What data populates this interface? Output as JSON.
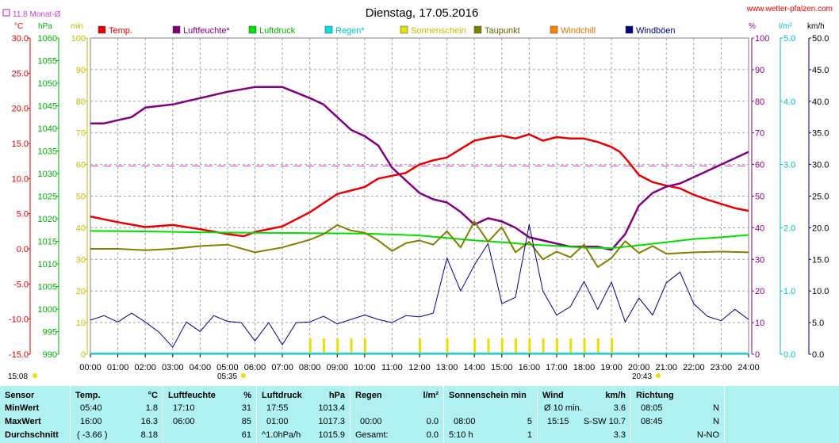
{
  "header": {
    "title": "Dienstag, 17.05.2016",
    "site": "www.wetter-pfalzen.com",
    "monthly_avg": "11.8 Monat-Ø",
    "sunrise": "05:35",
    "sunset": "20:43",
    "corner_time": "15:08"
  },
  "colors": {
    "temp": "#e80000",
    "humidity": "#800080",
    "pressure": "#00e000",
    "rain": "#00e0e0",
    "sunshine": "#e8e000",
    "dewpoint": "#808000",
    "windchill": "#ff8000",
    "gusts": "#000080",
    "monthly_avg": "#d040d0",
    "stats_bg": "#aff0f0"
  },
  "chart_data": {
    "type": "line",
    "title": "Dienstag, 17.05.2016",
    "legend": [
      "Temp.",
      "Luftfeuchte*",
      "Luftdruck",
      "Regen*",
      "Sonnenschein",
      "Taupunkt",
      "Windchill",
      "Windböen"
    ],
    "x_ticks": [
      "00:00",
      "01:00",
      "02:00",
      "03:00",
      "04:00",
      "05:00",
      "06:00",
      "07:00",
      "08:00",
      "09:00",
      "10:00",
      "11:00",
      "12:00",
      "13:00",
      "14:00",
      "15:00",
      "16:00",
      "17:00",
      "18:00",
      "19:00",
      "20:00",
      "21:00",
      "22:00",
      "23:00",
      "24:00"
    ],
    "axes": {
      "temp_c": {
        "unit": "°C",
        "range": [
          -15,
          30
        ],
        "ticks": [
          "30.0",
          "25.0",
          "20.0",
          "15.0",
          "10.0",
          "5.0",
          "0.0",
          "-5.0",
          "-10.0",
          "-15.0"
        ]
      },
      "pressure_hpa": {
        "unit": "hPa",
        "range": [
          990,
          1060
        ],
        "ticks": [
          "1060",
          "1055",
          "1050",
          "1045",
          "1040",
          "1035",
          "1030",
          "1025",
          "1020",
          "1015",
          "1010",
          "1005",
          "1000",
          "995",
          "990"
        ]
      },
      "sunshine_min": {
        "unit": "min",
        "range": [
          0,
          100
        ],
        "ticks": [
          "100",
          "90",
          "80",
          "70",
          "60",
          "50",
          "40",
          "30",
          "20",
          "10",
          "0"
        ]
      },
      "humidity_pct": {
        "unit": "%",
        "range": [
          0,
          100
        ],
        "ticks": [
          "100",
          "90",
          "80",
          "70",
          "60",
          "50",
          "40",
          "30",
          "20",
          "10",
          "0"
        ]
      },
      "rain_lm2": {
        "unit": "l/m²",
        "range": [
          0,
          5
        ],
        "ticks": [
          "5.0",
          "4.0",
          "3.0",
          "2.0",
          "1.0",
          "0.0"
        ]
      },
      "wind_kmh": {
        "unit": "km/h",
        "range": [
          0,
          50
        ],
        "ticks": [
          "50.0",
          "45.0",
          "40.0",
          "35.0",
          "30.0",
          "25.0",
          "20.0",
          "15.0",
          "10.0",
          "5.0",
          "0.0"
        ]
      }
    },
    "monthly_avg_temp": 11.8,
    "series": [
      {
        "name": "Temp.",
        "axis": "temp_c",
        "x": [
          0,
          1,
          2,
          3,
          4,
          5,
          5.6,
          6,
          7,
          8,
          9,
          10,
          10.5,
          11,
          11.5,
          12,
          12.5,
          13,
          13.5,
          14,
          14.5,
          15,
          15.5,
          16,
          16.5,
          17,
          17.5,
          18,
          18.5,
          19,
          19.3,
          19.6,
          20,
          20.5,
          21,
          21.5,
          22,
          22.5,
          23,
          23.5,
          24
        ],
        "y": [
          4.6,
          3.8,
          3.1,
          3.4,
          2.8,
          2.1,
          1.8,
          2.4,
          3.2,
          5.2,
          7.8,
          8.8,
          10.0,
          10.4,
          10.8,
          12.0,
          12.6,
          13.0,
          14.2,
          15.4,
          15.8,
          16.1,
          15.7,
          16.3,
          15.4,
          15.9,
          15.7,
          15.7,
          15.2,
          14.5,
          13.8,
          12.5,
          10.5,
          9.5,
          9.0,
          8.6,
          7.7,
          7.0,
          6.4,
          5.8,
          5.4
        ]
      },
      {
        "name": "Luftfeuchte*",
        "axis": "humidity_pct",
        "x": [
          0,
          0.5,
          1,
          1.5,
          2,
          3,
          4,
          5,
          6,
          7,
          8,
          8.5,
          9,
          9.5,
          10,
          10.5,
          11,
          11.5,
          12,
          12.5,
          13,
          13.5,
          14,
          14.5,
          15,
          15.5,
          16,
          16.5,
          17,
          17.5,
          18,
          18.5,
          19,
          19.5,
          20,
          20.5,
          21,
          21.5,
          22,
          22.5,
          23,
          23.5,
          24
        ],
        "y": [
          73,
          73,
          74,
          75,
          78,
          79,
          81,
          83,
          84.5,
          84.5,
          81,
          79,
          75,
          71,
          69,
          66,
          59,
          55,
          51,
          49,
          48,
          45,
          41,
          43,
          42,
          40,
          37,
          36,
          35,
          34,
          34,
          34,
          33,
          38,
          47,
          51,
          53,
          54,
          56,
          58,
          60,
          62,
          64
        ]
      },
      {
        "name": "Luftdruck",
        "axis": "pressure_hpa",
        "x": [
          0,
          2,
          4,
          6,
          8,
          10,
          12,
          14,
          15,
          16,
          17,
          18,
          19,
          20,
          21,
          22,
          23,
          24
        ],
        "y": [
          1017.3,
          1017.2,
          1017.0,
          1016.9,
          1016.8,
          1016.7,
          1016.3,
          1015.2,
          1014.8,
          1014.3,
          1014.0,
          1013.6,
          1013.5,
          1014.1,
          1014.8,
          1015.5,
          1015.9,
          1016.4
        ]
      },
      {
        "name": "Taupunkt",
        "axis": "temp_c",
        "x": [
          0,
          1,
          2,
          3,
          4,
          5,
          6,
          7,
          8,
          8.5,
          9,
          9.5,
          10,
          10.5,
          11,
          11.5,
          12,
          12.5,
          13,
          13.5,
          14,
          14.5,
          15,
          15.5,
          16,
          16.5,
          17,
          17.5,
          18,
          18.5,
          19,
          19.5,
          20,
          20.5,
          21,
          22,
          23,
          24
        ],
        "y": [
          0.0,
          0.0,
          -0.2,
          0.0,
          0.4,
          0.6,
          -0.5,
          0.2,
          1.3,
          2.1,
          3.4,
          2.6,
          2.3,
          1.2,
          -0.3,
          0.8,
          1.2,
          0.6,
          2.5,
          0.2,
          3.9,
          1.0,
          3.1,
          -0.5,
          1.0,
          -1.5,
          -0.4,
          -1.2,
          0.6,
          -2.6,
          -1.3,
          1.1,
          -0.6,
          0.4,
          -0.7,
          -0.5,
          -0.4,
          -0.5
        ]
      },
      {
        "name": "Windböen",
        "axis": "wind_kmh",
        "x": [
          0,
          0.5,
          1,
          1.5,
          2,
          2.5,
          3,
          3.5,
          4,
          4.5,
          5,
          5.5,
          6,
          6.5,
          7,
          7.5,
          8,
          8.5,
          9,
          9.5,
          10,
          10.5,
          11,
          11.5,
          12,
          12.5,
          13,
          13.5,
          14,
          14.5,
          15,
          15.5,
          16,
          16.5,
          17,
          17.5,
          18,
          18.5,
          19,
          19.5,
          20,
          20.5,
          21,
          21.5,
          22,
          22.5,
          23,
          23.5,
          24
        ],
        "y": [
          5.4,
          6.1,
          5.1,
          6.5,
          5.1,
          3.5,
          1.1,
          5.1,
          3.6,
          6.1,
          5.2,
          5.0,
          2.1,
          5.0,
          1.5,
          5.0,
          5.1,
          6.0,
          4.8,
          5.5,
          6.2,
          5.5,
          5.0,
          6.1,
          5.9,
          6.5,
          15.2,
          10.0,
          14.1,
          17.5,
          8.0,
          9.0,
          20.5,
          10.0,
          6.2,
          7.5,
          11.5,
          7.1,
          11.4,
          5.1,
          8.9,
          6.2,
          11.3,
          13.0,
          8.0,
          6.0,
          5.3,
          7.1,
          5.5
        ]
      },
      {
        "name": "Sonnenschein",
        "axis": "sunshine_min",
        "x": [
          8,
          8.5,
          9,
          9.5,
          10,
          12,
          13,
          14,
          14.5,
          15,
          15.5,
          16,
          16.5,
          17,
          17.5,
          18,
          18.5,
          19
        ],
        "y": [
          5,
          5,
          5,
          5,
          5,
          5,
          5,
          5,
          5,
          5,
          5,
          5,
          5,
          5,
          5,
          5,
          5,
          5
        ]
      }
    ]
  },
  "stats": {
    "headers": {
      "sensor": "Sensor",
      "temp": "Temp.",
      "temp_unit": "°C",
      "hum": "Luftfeuchte",
      "hum_unit": "%",
      "press": "Luftdruck",
      "press_unit": "hPa",
      "rain": "Regen",
      "rain_unit": "l/m²",
      "sun": "Sonnenschein min",
      "wind": "Wind",
      "wind_unit": "km/h",
      "dir": "Richtung"
    },
    "rows": [
      {
        "label": "MinWert",
        "temp_t": "05:40",
        "temp_v": "1.8",
        "hum_t": "17:10",
        "hum_v": "31",
        "press_t": "17:55",
        "press_v": "1013.4",
        "rain_t": "",
        "rain_v": "",
        "sun_t": "",
        "sun_v": "",
        "wind_t": "Ø 10 min.",
        "wind_v": "3.6",
        "dir_t": "08:05",
        "dir_v": "N"
      },
      {
        "label": "MaxWert",
        "temp_t": "16:00",
        "temp_v": "16.3",
        "hum_t": "06:00",
        "hum_v": "85",
        "press_t": "01:00",
        "press_v": "1017.3",
        "rain_t": "00:00",
        "rain_v": "0.0",
        "sun_t": "08:00",
        "sun_v": "5",
        "wind_t": "15:15",
        "wind_v": "S-SW 10.7",
        "dir_t": "08:45",
        "dir_v": "N"
      },
      {
        "label": "Durchschnitt",
        "temp_t": "( -3.66 )",
        "temp_v": "8.18",
        "hum_t": "",
        "hum_v": "61",
        "press_t": "^1.0hPa/h",
        "press_v": "1015.9",
        "rain_t": "Gesamt:",
        "rain_v": "0.0",
        "sun_t": "5:10 h",
        "sun_v": "1",
        "wind_t": "",
        "wind_v": "3.3",
        "dir_t": "",
        "dir_v": "N-NO"
      }
    ]
  }
}
